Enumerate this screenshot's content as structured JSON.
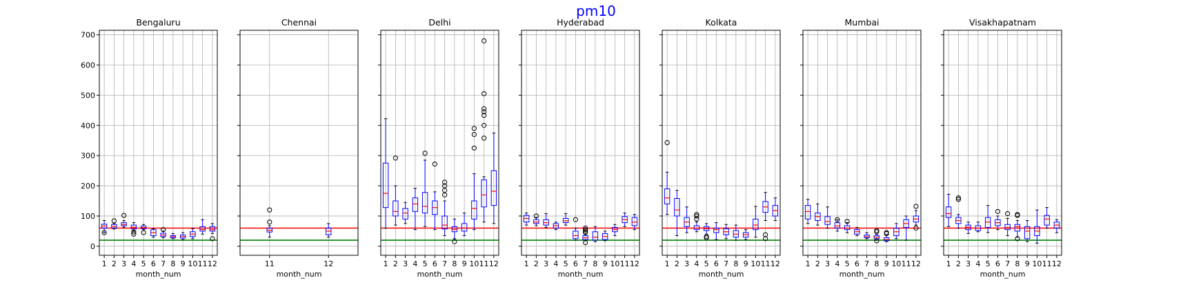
{
  "figure": {
    "suptitle": "pm10",
    "suptitle_color": "#0000ff",
    "box_color": "#0000ff",
    "median_color": "#ff0000",
    "whisker_color": "#0000ff",
    "outlier_color": "#000000",
    "ref_line_colors": [
      "#ff0000",
      "#008000"
    ],
    "grid_color": "#b0b0b0"
  },
  "chart_data": [
    {
      "type": "box",
      "title": "Bengaluru",
      "xlabel": "month_num",
      "ylabel": "",
      "ylim": [
        -30,
        715
      ],
      "yticks": [
        0,
        100,
        200,
        300,
        400,
        500,
        600,
        700
      ],
      "grid": true,
      "hlines": [
        60,
        20
      ],
      "categories": [
        "1",
        "2",
        "3",
        "4",
        "5",
        "6",
        "7",
        "8",
        "9",
        "10",
        "11",
        "12"
      ],
      "boxes": [
        {
          "whislo": 45,
          "q1": 60,
          "med": 67,
          "q3": 73,
          "whishi": 85,
          "fliers": [
            45
          ]
        },
        {
          "whislo": 57,
          "q1": 60,
          "med": 65,
          "q3": 72,
          "whishi": 75,
          "fliers": [
            84
          ]
        },
        {
          "whislo": 63,
          "q1": 68,
          "med": 72,
          "q3": 78,
          "whishi": 85,
          "fliers": [
            102
          ]
        },
        {
          "whislo": 50,
          "q1": 57,
          "med": 63,
          "q3": 70,
          "whishi": 78,
          "fliers": [
            40,
            47
          ]
        },
        {
          "whislo": 55,
          "q1": 58,
          "med": 62,
          "q3": 67,
          "whishi": 72,
          "fliers": [
            45
          ]
        },
        {
          "whislo": 30,
          "q1": 35,
          "med": 45,
          "q3": 55,
          "whishi": 58,
          "fliers": []
        },
        {
          "whislo": 28,
          "q1": 32,
          "med": 37,
          "q3": 43,
          "whishi": 50,
          "fliers": [
            55
          ]
        },
        {
          "whislo": 25,
          "q1": 28,
          "med": 32,
          "q3": 35,
          "whishi": 42,
          "fliers": []
        },
        {
          "whislo": 22,
          "q1": 27,
          "med": 32,
          "q3": 37,
          "whishi": 45,
          "fliers": []
        },
        {
          "whislo": 25,
          "q1": 32,
          "med": 40,
          "q3": 48,
          "whishi": 58,
          "fliers": []
        },
        {
          "whislo": 40,
          "q1": 50,
          "med": 55,
          "q3": 65,
          "whishi": 88,
          "fliers": []
        },
        {
          "whislo": 42,
          "q1": 50,
          "med": 55,
          "q3": 65,
          "whishi": 75,
          "fliers": [
            25
          ]
        }
      ]
    },
    {
      "type": "box",
      "title": "Chennai",
      "xlabel": "month_num",
      "ylabel": "",
      "ylim": [
        -30,
        715
      ],
      "yticks": [
        0,
        100,
        200,
        300,
        400,
        500,
        600,
        700
      ],
      "grid": true,
      "hlines": [
        60,
        20
      ],
      "categories": [
        "11",
        "12"
      ],
      "boxes": [
        {
          "whislo": 30,
          "q1": 47,
          "med": 53,
          "q3": 60,
          "whishi": 68,
          "fliers": [
            80,
            120
          ]
        },
        {
          "whislo": 30,
          "q1": 38,
          "med": 50,
          "q3": 60,
          "whishi": 75,
          "fliers": []
        }
      ]
    },
    {
      "type": "box",
      "title": "Delhi",
      "xlabel": "month_num",
      "ylabel": "",
      "ylim": [
        -30,
        715
      ],
      "yticks": [
        0,
        100,
        200,
        300,
        400,
        500,
        600,
        700
      ],
      "grid": true,
      "hlines": [
        60,
        20
      ],
      "categories": [
        "1",
        "2",
        "3",
        "4",
        "5",
        "6",
        "7",
        "8",
        "9",
        "10",
        "11",
        "12"
      ],
      "boxes": [
        {
          "whislo": 60,
          "q1": 128,
          "med": 175,
          "q3": 275,
          "whishi": 422,
          "fliers": []
        },
        {
          "whislo": 70,
          "q1": 100,
          "med": 115,
          "q3": 150,
          "whishi": 200,
          "fliers": [
            292
          ]
        },
        {
          "whislo": 75,
          "q1": 90,
          "med": 110,
          "q3": 125,
          "whishi": 145,
          "fliers": []
        },
        {
          "whislo": 55,
          "q1": 115,
          "med": 140,
          "q3": 160,
          "whishi": 192,
          "fliers": []
        },
        {
          "whislo": 65,
          "q1": 110,
          "med": 132,
          "q3": 178,
          "whishi": 285,
          "fliers": [
            308
          ]
        },
        {
          "whislo": 55,
          "q1": 105,
          "med": 128,
          "q3": 150,
          "whishi": 180,
          "fliers": [
            272
          ]
        },
        {
          "whislo": 35,
          "q1": 57,
          "med": 70,
          "q3": 100,
          "whishi": 150,
          "fliers": [
            170,
            185,
            200,
            212
          ]
        },
        {
          "whislo": 25,
          "q1": 48,
          "med": 55,
          "q3": 65,
          "whishi": 90,
          "fliers": [
            15
          ]
        },
        {
          "whislo": 35,
          "q1": 50,
          "med": 60,
          "q3": 75,
          "whishi": 110,
          "fliers": []
        },
        {
          "whislo": 55,
          "q1": 90,
          "med": 125,
          "q3": 150,
          "whishi": 240,
          "fliers": [
            325,
            370,
            390
          ]
        },
        {
          "whislo": 80,
          "q1": 130,
          "med": 170,
          "q3": 220,
          "whishi": 230,
          "fliers": [
            358,
            400,
            433,
            445,
            455,
            505,
            680
          ]
        },
        {
          "whislo": 75,
          "q1": 135,
          "med": 182,
          "q3": 250,
          "whishi": 375,
          "fliers": []
        }
      ]
    },
    {
      "type": "box",
      "title": "Hyderabad",
      "xlabel": "month_num",
      "ylabel": "",
      "ylim": [
        -30,
        715
      ],
      "yticks": [
        0,
        100,
        200,
        300,
        400,
        500,
        600,
        700
      ],
      "grid": true,
      "hlines": [
        60,
        20
      ],
      "categories": [
        "1",
        "2",
        "3",
        "4",
        "5",
        "6",
        "7",
        "8",
        "9",
        "10",
        "11",
        "12"
      ],
      "boxes": [
        {
          "whislo": 70,
          "q1": 80,
          "med": 92,
          "q3": 102,
          "whishi": 110,
          "fliers": []
        },
        {
          "whislo": 68,
          "q1": 75,
          "med": 80,
          "q3": 88,
          "whishi": 95,
          "fliers": [
            100
          ]
        },
        {
          "whislo": 62,
          "q1": 70,
          "med": 78,
          "q3": 88,
          "whishi": 108,
          "fliers": []
        },
        {
          "whislo": 55,
          "q1": 60,
          "med": 68,
          "q3": 75,
          "whishi": 80,
          "fliers": []
        },
        {
          "whislo": 70,
          "q1": 78,
          "med": 84,
          "q3": 92,
          "whishi": 108,
          "fliers": []
        },
        {
          "whislo": 20,
          "q1": 25,
          "med": 35,
          "q3": 50,
          "whishi": 60,
          "fliers": [
            88
          ]
        },
        {
          "whislo": 18,
          "q1": 22,
          "med": 28,
          "q3": 35,
          "whishi": 40,
          "fliers": [
            12,
            45,
            50,
            55,
            60
          ]
        },
        {
          "whislo": 15,
          "q1": 20,
          "med": 30,
          "q3": 48,
          "whishi": 65,
          "fliers": []
        },
        {
          "whislo": 18,
          "q1": 22,
          "med": 32,
          "q3": 42,
          "whishi": 50,
          "fliers": []
        },
        {
          "whislo": 35,
          "q1": 48,
          "med": 55,
          "q3": 62,
          "whishi": 72,
          "fliers": []
        },
        {
          "whislo": 65,
          "q1": 78,
          "med": 88,
          "q3": 98,
          "whishi": 110,
          "fliers": []
        },
        {
          "whislo": 55,
          "q1": 68,
          "med": 80,
          "q3": 95,
          "whishi": 105,
          "fliers": []
        }
      ]
    },
    {
      "type": "box",
      "title": "Kolkata",
      "xlabel": "month_num",
      "ylabel": "",
      "ylim": [
        -30,
        715
      ],
      "yticks": [
        0,
        100,
        200,
        300,
        400,
        500,
        600,
        700
      ],
      "grid": true,
      "hlines": [
        60,
        20
      ],
      "categories": [
        "1",
        "2",
        "3",
        "4",
        "5",
        "6",
        "7",
        "8",
        "9",
        "10",
        "11",
        "12"
      ],
      "boxes": [
        {
          "whislo": 105,
          "q1": 140,
          "med": 160,
          "q3": 190,
          "whishi": 245,
          "fliers": [
            343
          ]
        },
        {
          "whislo": 35,
          "q1": 100,
          "med": 120,
          "q3": 158,
          "whishi": 185,
          "fliers": []
        },
        {
          "whislo": 45,
          "q1": 65,
          "med": 80,
          "q3": 95,
          "whishi": 130,
          "fliers": []
        },
        {
          "whislo": 48,
          "q1": 55,
          "med": 60,
          "q3": 68,
          "whishi": 80,
          "fliers": [
            90,
            100,
            105
          ]
        },
        {
          "whislo": 40,
          "q1": 52,
          "med": 58,
          "q3": 65,
          "whishi": 75,
          "fliers": [
            28,
            32
          ]
        },
        {
          "whislo": 22,
          "q1": 45,
          "med": 55,
          "q3": 60,
          "whishi": 78,
          "fliers": []
        },
        {
          "whislo": 25,
          "q1": 38,
          "med": 48,
          "q3": 58,
          "whishi": 72,
          "fliers": []
        },
        {
          "whislo": 20,
          "q1": 30,
          "med": 40,
          "q3": 52,
          "whishi": 70,
          "fliers": []
        },
        {
          "whislo": 22,
          "q1": 30,
          "med": 38,
          "q3": 45,
          "whishi": 55,
          "fliers": []
        },
        {
          "whislo": 30,
          "q1": 55,
          "med": 70,
          "q3": 90,
          "whishi": 132,
          "fliers": []
        },
        {
          "whislo": 85,
          "q1": 112,
          "med": 130,
          "q3": 148,
          "whishi": 178,
          "fliers": [
            25,
            38
          ]
        },
        {
          "whislo": 85,
          "q1": 100,
          "med": 118,
          "q3": 135,
          "whishi": 160,
          "fliers": []
        }
      ]
    },
    {
      "type": "box",
      "title": "Mumbai",
      "xlabel": "month_num",
      "ylabel": "",
      "ylim": [
        -30,
        715
      ],
      "yticks": [
        0,
        100,
        200,
        300,
        400,
        500,
        600,
        700
      ],
      "grid": true,
      "hlines": [
        60,
        20
      ],
      "categories": [
        "1",
        "2",
        "3",
        "4",
        "5",
        "6",
        "7",
        "8",
        "9",
        "10",
        "11",
        "12"
      ],
      "boxes": [
        {
          "whislo": 75,
          "q1": 90,
          "med": 115,
          "q3": 135,
          "whishi": 155,
          "fliers": []
        },
        {
          "whislo": 70,
          "q1": 85,
          "med": 98,
          "q3": 110,
          "whishi": 140,
          "fliers": []
        },
        {
          "whislo": 60,
          "q1": 72,
          "med": 82,
          "q3": 98,
          "whishi": 130,
          "fliers": []
        },
        {
          "whislo": 50,
          "q1": 60,
          "med": 67,
          "q3": 78,
          "whishi": 88,
          "fliers": [
            88
          ]
        },
        {
          "whislo": 45,
          "q1": 55,
          "med": 60,
          "q3": 68,
          "whishi": 78,
          "fliers": [
            82
          ]
        },
        {
          "whislo": 35,
          "q1": 40,
          "med": 48,
          "q3": 55,
          "whishi": 62,
          "fliers": []
        },
        {
          "whislo": 25,
          "q1": 28,
          "med": 32,
          "q3": 37,
          "whishi": 45,
          "fliers": []
        },
        {
          "whislo": 20,
          "q1": 25,
          "med": 30,
          "q3": 35,
          "whishi": 40,
          "fliers": [
            18,
            48,
            52
          ]
        },
        {
          "whislo": 15,
          "q1": 18,
          "med": 22,
          "q3": 28,
          "whishi": 35,
          "fliers": [
            42,
            45
          ]
        },
        {
          "whislo": 25,
          "q1": 35,
          "med": 48,
          "q3": 60,
          "whishi": 75,
          "fliers": []
        },
        {
          "whislo": 20,
          "q1": 62,
          "med": 75,
          "q3": 88,
          "whishi": 100,
          "fliers": []
        },
        {
          "whislo": 70,
          "q1": 80,
          "med": 90,
          "q3": 100,
          "whishi": 118,
          "fliers": [
            60,
            132
          ]
        }
      ]
    },
    {
      "type": "box",
      "title": "Visakhapatnam",
      "xlabel": "month_num",
      "ylabel": "",
      "ylim": [
        -30,
        715
      ],
      "yticks": [
        0,
        100,
        200,
        300,
        400,
        500,
        600,
        700
      ],
      "grid": true,
      "hlines": [
        60,
        20
      ],
      "categories": [
        "1",
        "2",
        "3",
        "4",
        "5",
        "6",
        "7",
        "8",
        "9",
        "10",
        "11",
        "12"
      ],
      "boxes": [
        {
          "whislo": 65,
          "q1": 95,
          "med": 108,
          "q3": 130,
          "whishi": 172,
          "fliers": []
        },
        {
          "whislo": 60,
          "q1": 75,
          "med": 85,
          "q3": 95,
          "whishi": 105,
          "fliers": [
            155,
            160
          ]
        },
        {
          "whislo": 42,
          "q1": 55,
          "med": 63,
          "q3": 70,
          "whishi": 80,
          "fliers": []
        },
        {
          "whislo": 48,
          "q1": 52,
          "med": 60,
          "q3": 68,
          "whishi": 80,
          "fliers": []
        },
        {
          "whislo": 45,
          "q1": 62,
          "med": 80,
          "q3": 95,
          "whishi": 135,
          "fliers": []
        },
        {
          "whislo": 55,
          "q1": 68,
          "med": 78,
          "q3": 88,
          "whishi": 100,
          "fliers": [
            115
          ]
        },
        {
          "whislo": 35,
          "q1": 55,
          "med": 62,
          "q3": 72,
          "whishi": 92,
          "fliers": [
            108
          ]
        },
        {
          "whislo": 30,
          "q1": 50,
          "med": 65,
          "q3": 72,
          "whishi": 85,
          "fliers": [
            25,
            102,
            105
          ]
        },
        {
          "whislo": 15,
          "q1": 25,
          "med": 50,
          "q3": 65,
          "whishi": 85,
          "fliers": []
        },
        {
          "whislo": 10,
          "q1": 35,
          "med": 50,
          "q3": 65,
          "whishi": 120,
          "fliers": []
        },
        {
          "whislo": 60,
          "q1": 70,
          "med": 90,
          "q3": 102,
          "whishi": 128,
          "fliers": []
        },
        {
          "whislo": 45,
          "q1": 60,
          "med": 70,
          "q3": 80,
          "whishi": 88,
          "fliers": []
        }
      ]
    }
  ]
}
